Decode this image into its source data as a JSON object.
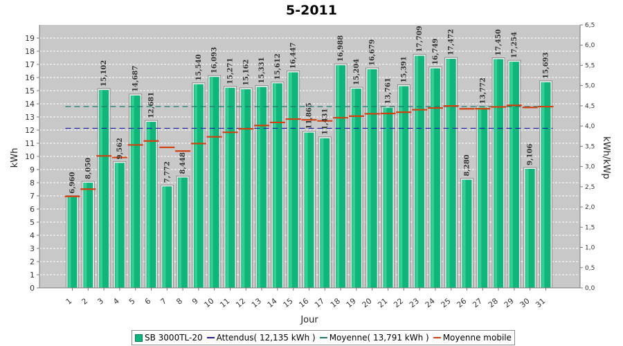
{
  "chart_data": {
    "type": "bar",
    "title": "5-2011",
    "xlabel": "Jour",
    "ylabel": "kWh",
    "y2label": "kWh/kWp",
    "ylim": [
      0,
      20
    ],
    "y2lim": [
      0,
      6.5
    ],
    "categories": [
      "1",
      "2",
      "3",
      "4",
      "5",
      "6",
      "7",
      "8",
      "9",
      "10",
      "11",
      "12",
      "13",
      "14",
      "15",
      "16",
      "17",
      "18",
      "19",
      "20",
      "21",
      "22",
      "23",
      "24",
      "25",
      "26",
      "27",
      "28",
      "29",
      "30",
      "31"
    ],
    "yticks": [
      "0",
      "1",
      "2",
      "3",
      "4",
      "5",
      "6",
      "7",
      "8",
      "9",
      "10",
      "11",
      "12",
      "13",
      "14",
      "15",
      "16",
      "17",
      "18",
      "19"
    ],
    "y2ticks": [
      "0,0",
      "0,5",
      "1,0",
      "1,5",
      "2,0",
      "2,5",
      "3,0",
      "3,5",
      "4,0",
      "4,5",
      "5,0",
      "5,5",
      "6,0",
      "6,5"
    ],
    "series": [
      {
        "name": "SB 3000TL-20",
        "type": "bar",
        "color": "#0fb57a",
        "values": [
          6.96,
          8.05,
          15.102,
          9.562,
          14.687,
          12.681,
          7.772,
          8.448,
          15.54,
          16.093,
          15.271,
          15.162,
          15.331,
          15.612,
          16.447,
          11.865,
          11.431,
          16.988,
          15.204,
          16.679,
          13.761,
          15.391,
          17.709,
          16.749,
          17.472,
          8.28,
          13.772,
          17.45,
          17.254,
          9.106,
          15.693
        ],
        "labels": [
          "6,960",
          "8,050",
          "15,102",
          "9,562",
          "14,687",
          "12,681",
          "7,772",
          "8,448",
          "15,540",
          "16,093",
          "15,271",
          "15,162",
          "15,331",
          "15,612",
          "16,447",
          "11,865",
          "11,431",
          "16,988",
          "15,204",
          "16,679",
          "13,761",
          "15,391",
          "17,709",
          "16,749",
          "17,472",
          "8,280",
          "13,772",
          "17,450",
          "17,254",
          "9,106",
          "15,693"
        ]
      },
      {
        "name": "Attendus( 12,135 kWh )",
        "type": "hline",
        "color": "#1a1aa8",
        "value": 12.135
      },
      {
        "name": "Moyenne( 13,791 kWh )",
        "type": "hline",
        "color": "#1a7a6a",
        "value": 13.791
      },
      {
        "name": "Moyenne mobile",
        "type": "step",
        "color": "#d04010",
        "values": [
          6.96,
          7.505,
          10.037,
          9.919,
          10.872,
          11.173,
          10.687,
          10.407,
          10.977,
          11.489,
          11.833,
          12.1,
          12.349,
          12.582,
          12.84,
          12.78,
          12.7,
          12.937,
          13.058,
          13.239,
          13.264,
          13.361,
          13.549,
          13.682,
          13.834,
          13.62,
          13.625,
          13.762,
          13.882,
          13.722,
          13.786
        ]
      }
    ],
    "legend_position": "bottom",
    "grid": true
  }
}
